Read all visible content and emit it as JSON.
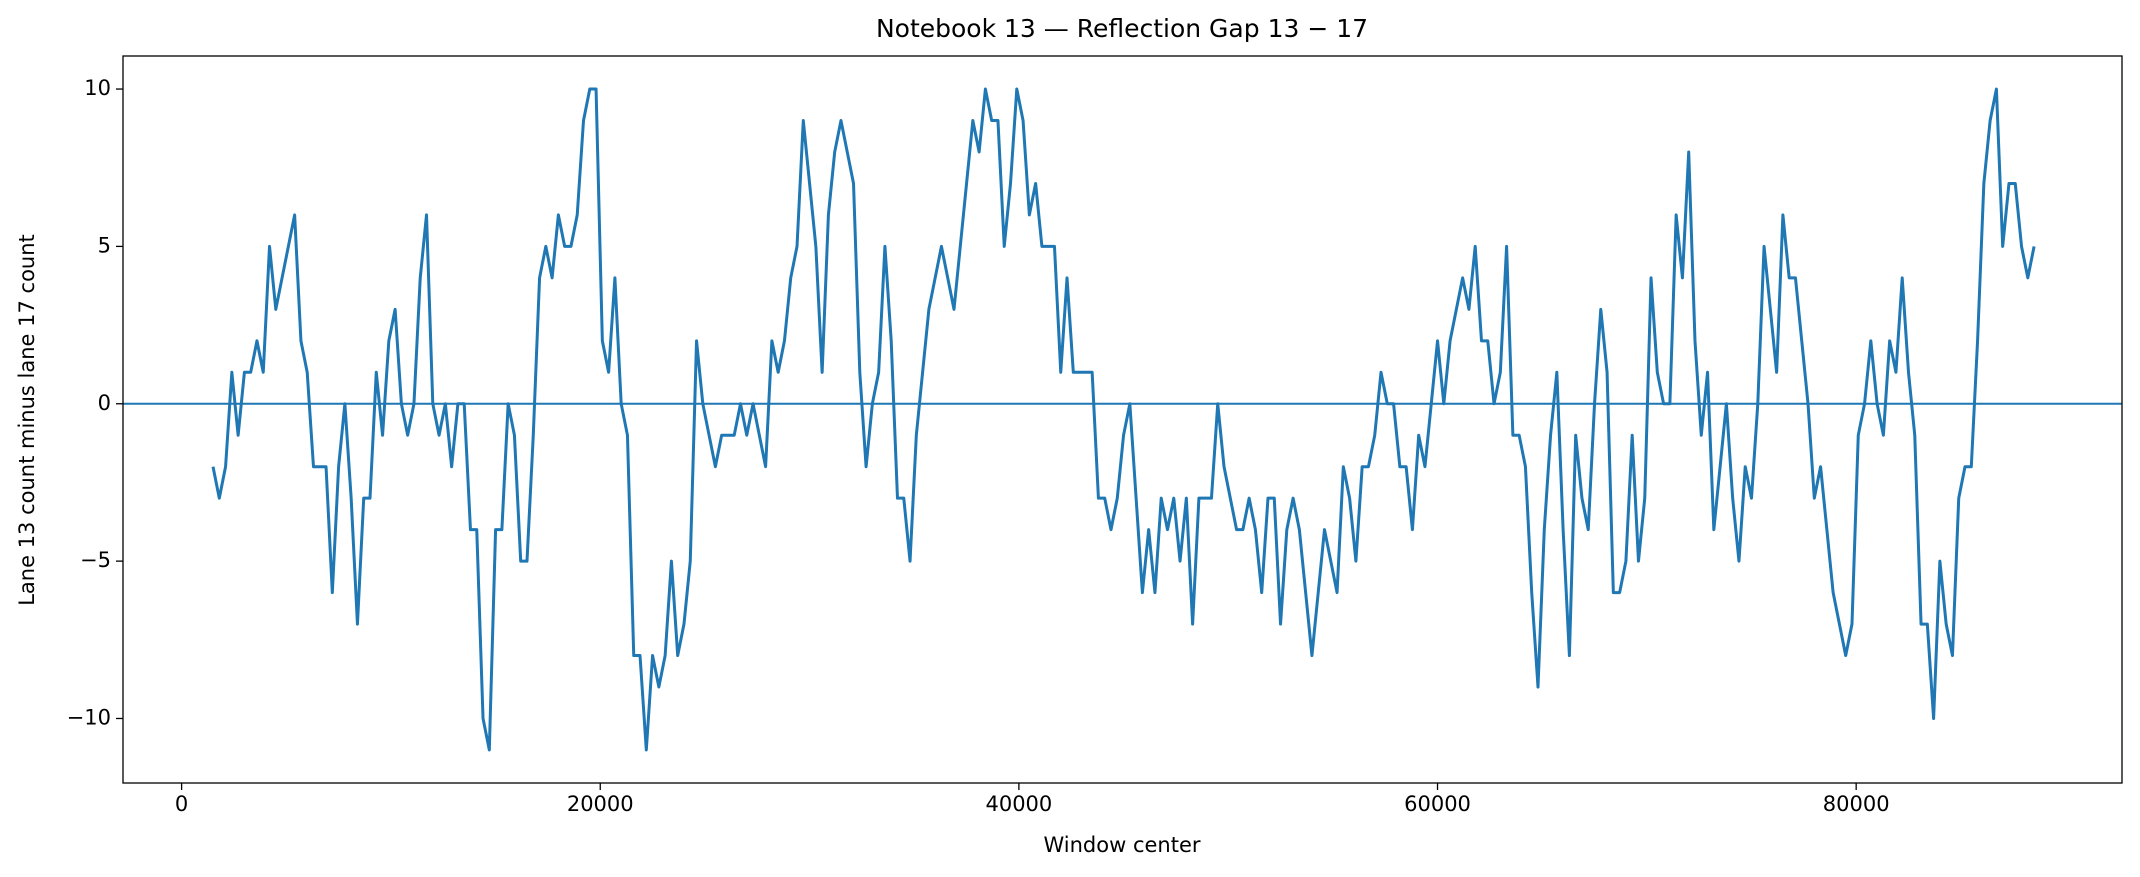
{
  "chart_data": {
    "type": "line",
    "title": "Notebook 13 — Reflection Gap 13 − 17",
    "xlabel": "Window center",
    "ylabel": "Lane 13 count minus lane 17 count",
    "color": "#1f77b4",
    "hlines": [
      0
    ],
    "xlim": [
      -2800,
      92700
    ],
    "ylim": [
      -12.05,
      11.05
    ],
    "xticks": [
      0,
      20000,
      40000,
      60000,
      80000
    ],
    "yticks": [
      {
        "value": -10,
        "label": "−10"
      },
      {
        "value": -5,
        "label": "−5"
      },
      0,
      5,
      10
    ],
    "x": [
      1500,
      1800,
      2100,
      2400,
      2700,
      3000,
      3300,
      3600,
      3900,
      4200,
      4500,
      4800,
      5100,
      5400,
      5700,
      6000,
      6300,
      6600,
      6900,
      7200,
      7500,
      7800,
      8100,
      8400,
      8700,
      9000,
      9300,
      9600,
      9900,
      10200,
      10500,
      10800,
      11100,
      11400,
      11700,
      12000,
      12300,
      12600,
      12900,
      13200,
      13500,
      13800,
      14100,
      14400,
      14700,
      15000,
      15300,
      15600,
      15900,
      16200,
      16500,
      16800,
      17100,
      17400,
      17700,
      18000,
      18300,
      18600,
      18900,
      19200,
      19500,
      19800,
      20100,
      20400,
      20700,
      21000,
      21300,
      21600,
      21900,
      22200,
      22500,
      22800,
      23100,
      23400,
      23700,
      24000,
      24300,
      24600,
      24900,
      25200,
      25500,
      25800,
      26100,
      26400,
      26700,
      27000,
      27300,
      27600,
      27900,
      28200,
      28500,
      28800,
      29100,
      29400,
      29700,
      30000,
      30300,
      30600,
      30900,
      31200,
      31500,
      31800,
      32100,
      32400,
      32700,
      33000,
      33300,
      33600,
      33900,
      34200,
      34500,
      34800,
      35100,
      35400,
      35700,
      36000,
      36300,
      36600,
      36900,
      37200,
      37500,
      37800,
      38100,
      38400,
      38700,
      39000,
      39300,
      39600,
      39900,
      40200,
      40500,
      40800,
      41100,
      41400,
      41700,
      42000,
      42300,
      42600,
      42900,
      43200,
      43500,
      43800,
      44100,
      44400,
      44700,
      45000,
      45300,
      45600,
      45900,
      46200,
      46500,
      46800,
      47100,
      47400,
      47700,
      48000,
      48300,
      48600,
      48900,
      49200,
      49500,
      49800,
      50100,
      50400,
      50700,
      51000,
      51300,
      51600,
      51900,
      52200,
      52500,
      52800,
      53100,
      53400,
      53700,
      54000,
      54300,
      54600,
      54900,
      55200,
      55500,
      55800,
      56100,
      56400,
      56700,
      57000,
      57300,
      57600,
      57900,
      58200,
      58500,
      58800,
      59100,
      59400,
      59700,
      60000,
      60300,
      60600,
      60900,
      61200,
      61500,
      61800,
      62100,
      62400,
      62700,
      63000,
      63300,
      63600,
      63900,
      64200,
      64500,
      64800,
      65100,
      65400,
      65700,
      66000,
      66300,
      66600,
      66900,
      67200,
      67500,
      67800,
      68100,
      68400,
      68700,
      69000,
      69300,
      69600,
      69900,
      70200,
      70500,
      70800,
      71100,
      71400,
      71700,
      72000,
      72300,
      72600,
      72900,
      73200,
      73500,
      73800,
      74100,
      74400,
      74700,
      75000,
      75300,
      75600,
      75900,
      76200,
      76500,
      76800,
      77100,
      77400,
      77700,
      78000,
      78300,
      78600,
      78900,
      79200,
      79500,
      79800,
      80100,
      80400,
      80700,
      81000,
      81300,
      81600,
      81900,
      82200,
      82500,
      82800,
      83100,
      83400,
      83700,
      84000,
      84300,
      84600,
      84900,
      85200,
      85500,
      85800,
      86100,
      86400,
      86700,
      87000,
      87300,
      87600,
      87900,
      88200,
      88500
    ],
    "values": [
      -2,
      -3,
      -2,
      1,
      -1,
      1,
      1,
      2,
      1,
      5,
      3,
      4,
      5,
      6,
      2,
      1,
      -2,
      -2,
      -2,
      -6,
      -2,
      0,
      -3,
      -7,
      -3,
      -3,
      1,
      -1,
      2,
      3,
      0,
      -1,
      0,
      4,
      6,
      0,
      -1,
      0,
      -2,
      0,
      0,
      -4,
      -4,
      -10,
      -11,
      -4,
      -4,
      0,
      -1,
      -5,
      -5,
      -1,
      4,
      5,
      4,
      6,
      5,
      5,
      6,
      9,
      10,
      10,
      2,
      1,
      4,
      0,
      -1,
      -8,
      -8,
      -11,
      -8,
      -9,
      -8,
      -5,
      -8,
      -7,
      -5,
      2,
      0,
      -1,
      -2,
      -1,
      -1,
      -1,
      0,
      -1,
      0,
      -1,
      -2,
      2,
      1,
      2,
      4,
      5,
      9,
      7,
      5,
      1,
      6,
      8,
      9,
      8,
      7,
      1,
      -2,
      0,
      1,
      5,
      2,
      -3,
      -3,
      -5,
      -1,
      1,
      3,
      4,
      5,
      4,
      3,
      5,
      7,
      9,
      8,
      10,
      9,
      9,
      5,
      7,
      10,
      9,
      6,
      7,
      5,
      5,
      5,
      1,
      4,
      1,
      1,
      1,
      1,
      -3,
      -3,
      -4,
      -3,
      -1,
      0,
      -3,
      -6,
      -4,
      -6,
      -3,
      -4,
      -3,
      -5,
      -3,
      -7,
      -3,
      -3,
      -3,
      0,
      -2,
      -3,
      -4,
      -4,
      -3,
      -4,
      -6,
      -3,
      -3,
      -7,
      -4,
      -3,
      -4,
      -6,
      -8,
      -6,
      -4,
      -5,
      -6,
      -2,
      -3,
      -5,
      -2,
      -2,
      -1,
      1,
      0,
      0,
      -2,
      -2,
      -4,
      -1,
      -2,
      0,
      2,
      0,
      2,
      3,
      4,
      3,
      5,
      2,
      2,
      0,
      1,
      5,
      -1,
      -1,
      -2,
      -6,
      -9,
      -4,
      -1,
      1,
      -4,
      -8,
      -1,
      -3,
      -4,
      0,
      3,
      1,
      -6,
      -6,
      -5,
      -1,
      -5,
      -3,
      4,
      1,
      0,
      0,
      6,
      4,
      8,
      2,
      -1,
      1,
      -4,
      -2,
      0,
      -3,
      -5,
      -2,
      -3,
      0,
      5,
      3,
      1,
      6,
      4,
      4,
      2,
      0,
      -3,
      -2,
      -4,
      -6,
      -7,
      -8,
      -7,
      -1,
      0,
      2,
      0,
      -1,
      2,
      1,
      4,
      1,
      -1,
      -7,
      -7,
      -10,
      -5,
      -7,
      -8,
      -3,
      -2,
      -2,
      2,
      7,
      9,
      10,
      5,
      7,
      7,
      5,
      4,
      5
    ]
  }
}
